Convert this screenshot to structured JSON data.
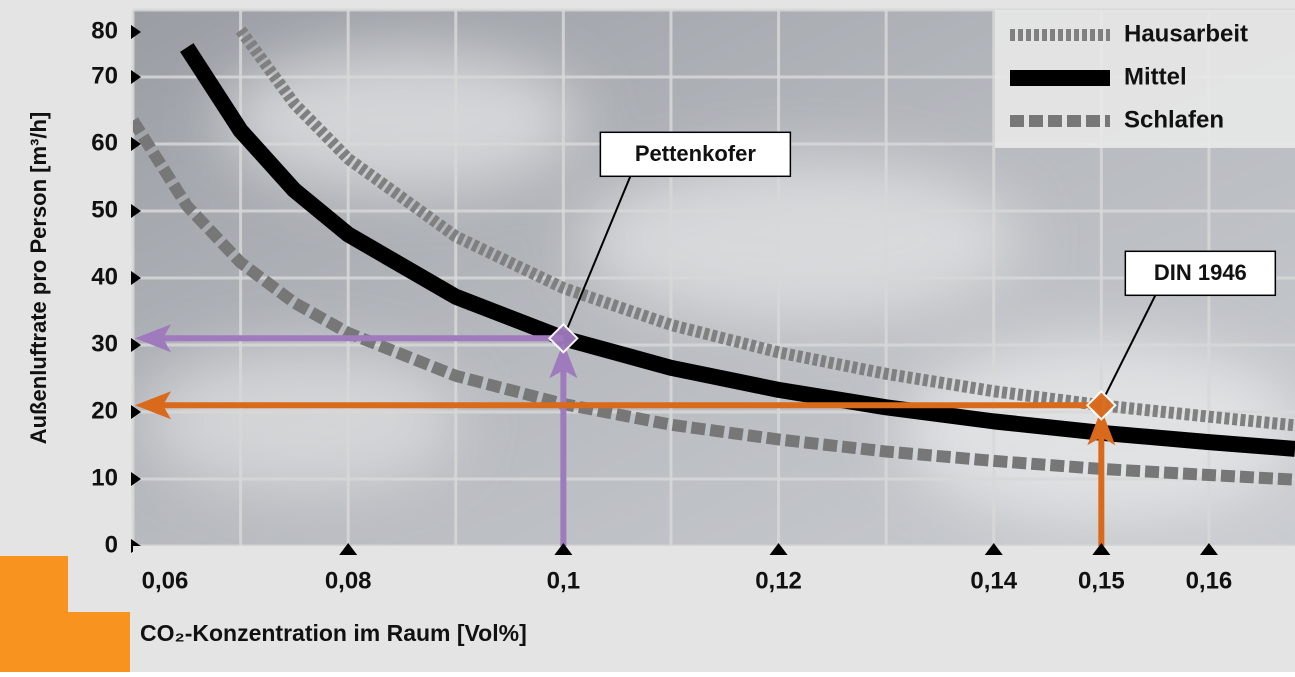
{
  "chart_data": {
    "type": "line",
    "ylabel": "Außenluftrate pro Person [m³/h]",
    "xlabel": "CO₂-Konzentration im Raum [Vol%]",
    "x": [
      0.06,
      0.065,
      0.07,
      0.075,
      0.08,
      0.09,
      0.1,
      0.11,
      0.12,
      0.13,
      0.14,
      0.15,
      0.16,
      0.168
    ],
    "series": [
      {
        "name": "Hausarbeit",
        "color": "#808080",
        "style": "dotted",
        "values": [
          null,
          null,
          77,
          66,
          57.8,
          46.2,
          38.5,
          33,
          28.9,
          25.7,
          23.1,
          21,
          19.3,
          18
        ]
      },
      {
        "name": "Mittel",
        "color": "#000000",
        "style": "solid",
        "values": [
          null,
          74.4,
          62,
          53.1,
          46.5,
          37.2,
          31,
          26.6,
          23.3,
          20.7,
          18.6,
          16.9,
          15.5,
          14.5
        ]
      },
      {
        "name": "Schlafen",
        "color": "#777777",
        "style": "dashed",
        "values": [
          63.5,
          50.8,
          42.3,
          36.3,
          31.8,
          25.4,
          21.2,
          18.1,
          15.9,
          14.1,
          12.7,
          11.5,
          10.6,
          9.9
        ]
      }
    ],
    "annotations": [
      {
        "text": "Pettenkofer",
        "x": 0.1,
        "y": 31,
        "color": "#9f7bbd"
      },
      {
        "text": "DIN 1946",
        "x": 0.15,
        "y": 21,
        "color": "#d96a1c"
      }
    ],
    "xlim": [
      0.06,
      0.168
    ],
    "ylim": [
      0,
      80
    ],
    "xticks": [
      {
        "value": 0.06,
        "label": "0,06"
      },
      {
        "value": 0.08,
        "label": "0,08"
      },
      {
        "value": 0.1,
        "label": "0,1"
      },
      {
        "value": 0.12,
        "label": "0,12"
      },
      {
        "value": 0.14,
        "label": "0,14"
      },
      {
        "value": 0.15,
        "label": "0,15"
      },
      {
        "value": 0.16,
        "label": "0,16"
      }
    ],
    "xgrid": [
      0.06,
      0.07,
      0.08,
      0.09,
      0.1,
      0.11,
      0.12,
      0.13,
      0.14,
      0.15,
      0.16
    ],
    "yticks": [
      0,
      10,
      20,
      30,
      40,
      50,
      60,
      70,
      80
    ],
    "grid": true,
    "legend": "upper right"
  }
}
